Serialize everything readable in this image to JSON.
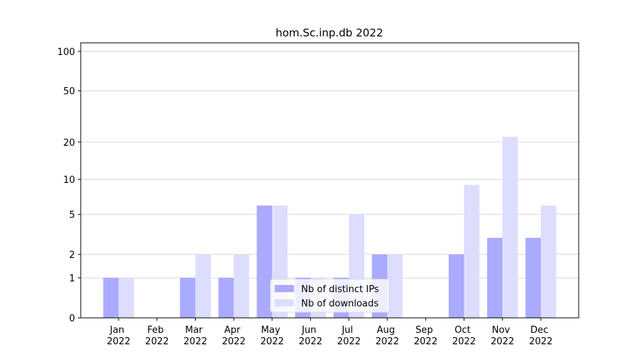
{
  "chart_data": {
    "type": "bar",
    "title": "hom.Sc.inp.db 2022",
    "categories": [
      "Jan 2022",
      "Feb 2022",
      "Mar 2022",
      "Apr 2022",
      "May 2022",
      "Jun 2022",
      "Jul 2022",
      "Aug 2022",
      "Sep 2022",
      "Oct 2022",
      "Nov 2022",
      "Dec 2022"
    ],
    "series": [
      {
        "name": "Nb of distinct IPs",
        "color": "#aaaaff",
        "values": [
          1,
          0,
          1,
          1,
          6,
          1,
          1,
          2,
          0,
          2,
          3,
          3
        ]
      },
      {
        "name": "Nb of downloads",
        "color": "#ddddff",
        "values": [
          1,
          0,
          2,
          2,
          6,
          1,
          5,
          2,
          0,
          9,
          22,
          6
        ]
      }
    ],
    "yscale": "log1p",
    "ylim": [
      0,
      116
    ],
    "yticks": [
      0,
      1,
      2,
      5,
      10,
      20,
      50,
      100
    ],
    "grid": true,
    "legend": "lower center"
  }
}
